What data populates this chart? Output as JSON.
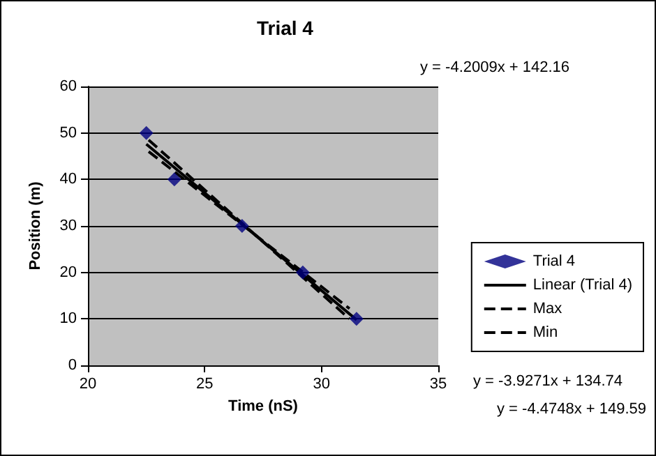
{
  "chart_data": {
    "type": "scatter",
    "title": "Trial 4",
    "xlabel": "Time (nS)",
    "ylabel": "Position (m)",
    "xlim": [
      20,
      35
    ],
    "xticks": [
      20,
      25,
      30,
      35
    ],
    "ylim": [
      0,
      60
    ],
    "yticks": [
      0,
      10,
      20,
      30,
      40,
      50,
      60
    ],
    "grid": "y",
    "legend": "right",
    "series": [
      {
        "name": "Trial 4",
        "marker": "diamond",
        "color": "#000080",
        "x": [
          22.5,
          23.7,
          26.6,
          29.2,
          31.5
        ],
        "values": [
          50,
          40,
          30,
          20,
          10
        ]
      },
      {
        "name": "Linear (Trial 4)",
        "type": "line",
        "line_style": "solid",
        "color": "#000000",
        "x": [
          22.5,
          31.5
        ],
        "values": [
          47.6,
          9.8
        ]
      },
      {
        "name": "Max",
        "type": "line",
        "line_style": "dashed",
        "color": "#000000",
        "x": [
          22.6,
          31.2
        ],
        "values": [
          46.0,
          12.2
        ]
      },
      {
        "name": "Min",
        "type": "line",
        "line_style": "dashed",
        "color": "#000000",
        "x": [
          22.6,
          31.2
        ],
        "values": [
          48.5,
          10.0
        ]
      }
    ],
    "annotations": [
      "y = -4.2009x + 142.16",
      "y = -3.9271x + 134.74",
      "y = -4.4748x + 149.59"
    ]
  }
}
